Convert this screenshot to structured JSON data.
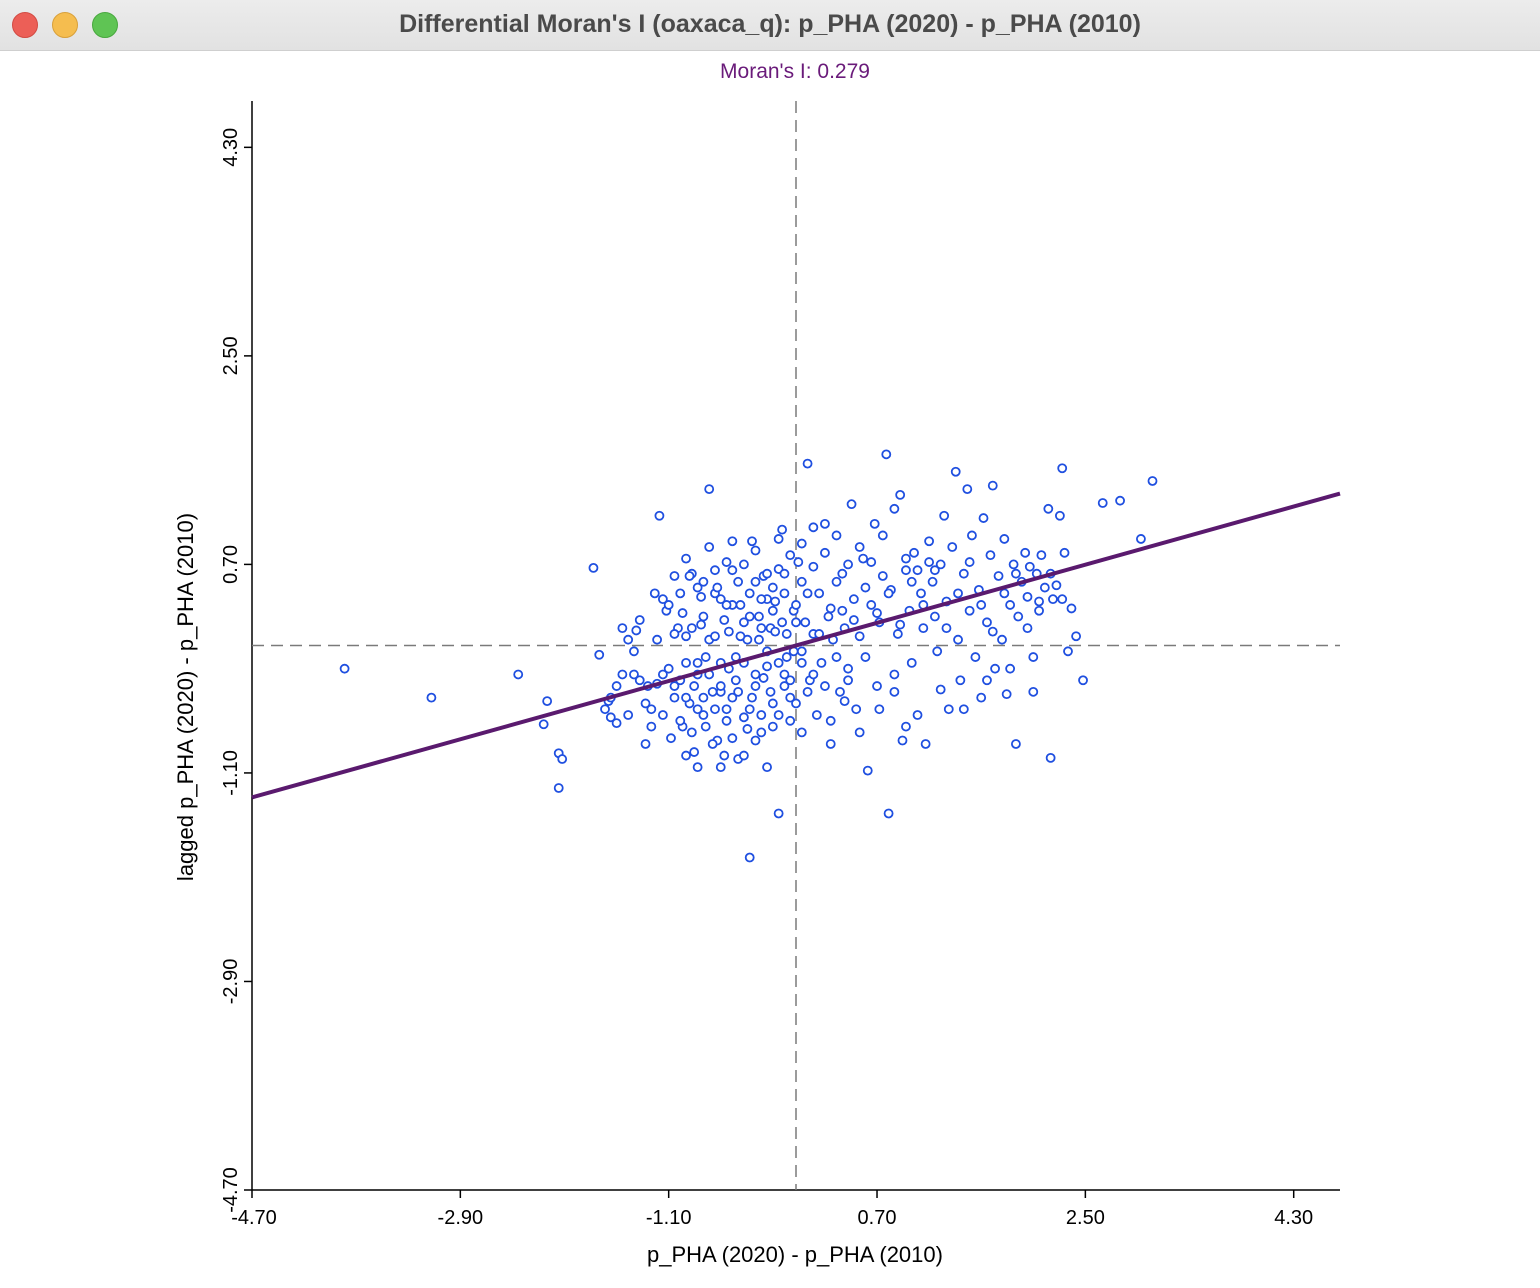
{
  "window": {
    "title": "Differential Moran's I (oaxaca_q): p_PHA (2020) - p_PHA (2010)"
  },
  "colors": {
    "points": "#1f4fe0",
    "regression_line": "#5a1a6e",
    "title": "#6a1b7a",
    "reference_lines": "#7a7a7a"
  },
  "chart_data": {
    "type": "scatter",
    "title": "Moran's I: 0.279",
    "xlabel": "p_PHA (2020) - p_PHA (2010)",
    "ylabel": "lagged p_PHA (2020) - p_PHA (2010)",
    "xlim": [
      -4.7,
      4.7
    ],
    "ylim": [
      -4.7,
      4.7
    ],
    "xticks": [
      "-4.70",
      "-2.90",
      "-1.10",
      "0.70",
      "2.50",
      "4.30"
    ],
    "yticks": [
      "-4.70",
      "-2.90",
      "-1.10",
      "0.70",
      "2.50",
      "4.30"
    ],
    "x_reference": 0.0,
    "y_reference": 0.0,
    "regression": {
      "slope": 0.279,
      "intercept": 0.0
    },
    "points": [
      [
        -3.9,
        -0.2
      ],
      [
        -3.15,
        -0.45
      ],
      [
        -2.4,
        -0.25
      ],
      [
        -2.15,
        -0.48
      ],
      [
        -2.18,
        -0.68
      ],
      [
        -2.05,
        -0.93
      ],
      [
        -2.02,
        -0.98
      ],
      [
        -2.05,
        -1.23
      ],
      [
        -1.75,
        0.67
      ],
      [
        -1.7,
        -0.08
      ],
      [
        -1.62,
        -0.48
      ],
      [
        -1.6,
        -0.62
      ],
      [
        -1.55,
        -0.67
      ],
      [
        -1.5,
        -0.25
      ],
      [
        -1.45,
        -0.6
      ],
      [
        -1.4,
        -0.25
      ],
      [
        -1.38,
        0.13
      ],
      [
        -1.35,
        0.22
      ],
      [
        -1.3,
        -0.85
      ],
      [
        -1.28,
        -0.35
      ],
      [
        -1.25,
        -0.55
      ],
      [
        -1.22,
        0.45
      ],
      [
        -1.2,
        -0.33
      ],
      [
        -1.18,
        1.12
      ],
      [
        -1.15,
        0.4
      ],
      [
        -1.12,
        0.3
      ],
      [
        -1.1,
        -0.2
      ],
      [
        -1.08,
        -0.8
      ],
      [
        -1.05,
        -0.45
      ],
      [
        -1.02,
        0.15
      ],
      [
        -1.0,
        -0.3
      ],
      [
        -0.98,
        -0.7
      ],
      [
        -0.95,
        0.08
      ],
      [
        -0.92,
        -0.5
      ],
      [
        -0.9,
        0.62
      ],
      [
        -0.88,
        -0.92
      ],
      [
        -0.85,
        -0.25
      ],
      [
        -0.82,
        0.18
      ],
      [
        -0.8,
        -0.6
      ],
      [
        -0.78,
        -0.1
      ],
      [
        -0.75,
        1.35
      ],
      [
        -0.72,
        -0.4
      ],
      [
        -0.7,
        0.45
      ],
      [
        -0.68,
        -0.82
      ],
      [
        -0.65,
        -0.15
      ],
      [
        -0.62,
        0.22
      ],
      [
        -0.6,
        -0.55
      ],
      [
        -0.58,
        0.12
      ],
      [
        -0.55,
        0.65
      ],
      [
        -0.52,
        -0.3
      ],
      [
        -0.5,
        -0.98
      ],
      [
        -0.48,
        0.35
      ],
      [
        -0.45,
        -0.62
      ],
      [
        -0.42,
        0.05
      ],
      [
        -0.4,
        -1.83
      ],
      [
        -0.38,
        0.9
      ],
      [
        -0.35,
        -0.35
      ],
      [
        -0.32,
        0.25
      ],
      [
        -0.3,
        -0.75
      ],
      [
        -0.28,
        0.6
      ],
      [
        -0.25,
        -0.18
      ],
      [
        -0.22,
        0.15
      ],
      [
        -0.2,
        -0.5
      ],
      [
        -0.18,
        0.38
      ],
      [
        -0.15,
        -1.45
      ],
      [
        -0.12,
        1.0
      ],
      [
        -0.1,
        -0.25
      ],
      [
        -0.08,
        0.1
      ],
      [
        -0.05,
        -0.65
      ],
      [
        -0.02,
        0.3
      ],
      [
        -0.15,
        0.66
      ],
      [
        -0.25,
        0.4
      ],
      [
        -0.35,
        0.55
      ],
      [
        -0.45,
        0.2
      ],
      [
        -0.55,
        0.35
      ],
      [
        -0.65,
        -0.4
      ],
      [
        -0.75,
        0.05
      ],
      [
        -0.85,
        -0.55
      ],
      [
        -0.95,
        -0.15
      ],
      [
        -1.05,
        0.1
      ],
      [
        -1.15,
        -0.6
      ],
      [
        -0.72,
        -0.85
      ],
      [
        -0.62,
        -0.95
      ],
      [
        -0.52,
        -0.1
      ],
      [
        -0.42,
        -0.72
      ],
      [
        -0.32,
        0.05
      ],
      [
        -0.22,
        -0.4
      ],
      [
        -0.12,
        0.2
      ],
      [
        -0.02,
        -0.05
      ],
      [
        -0.82,
        0.42
      ],
      [
        -0.92,
        0.6
      ],
      [
        -0.98,
        0.28
      ],
      [
        -0.88,
        -0.35
      ],
      [
        -0.78,
        -0.7
      ],
      [
        -0.68,
        0.5
      ],
      [
        -0.58,
        -0.2
      ],
      [
        -0.48,
        0.08
      ],
      [
        -0.38,
        -0.45
      ],
      [
        -0.28,
        -0.28
      ],
      [
        -0.18,
        0.12
      ],
      [
        -0.08,
        -0.1
      ],
      [
        0.0,
        0.35
      ],
      [
        0.02,
        0.72
      ],
      [
        0.05,
        -0.05
      ],
      [
        0.08,
        0.2
      ],
      [
        0.1,
        1.57
      ],
      [
        0.12,
        -0.3
      ],
      [
        0.15,
        0.1
      ],
      [
        0.18,
        -0.6
      ],
      [
        0.2,
        0.45
      ],
      [
        0.22,
        -0.15
      ],
      [
        0.25,
        1.05
      ],
      [
        0.28,
        0.25
      ],
      [
        0.3,
        -0.85
      ],
      [
        0.32,
        0.05
      ],
      [
        0.35,
        0.55
      ],
      [
        0.38,
        -0.4
      ],
      [
        0.4,
        0.3
      ],
      [
        0.42,
        0.15
      ],
      [
        0.45,
        -0.2
      ],
      [
        0.48,
        1.22
      ],
      [
        0.5,
        0.4
      ],
      [
        0.52,
        -0.55
      ],
      [
        0.55,
        0.08
      ],
      [
        0.58,
        0.75
      ],
      [
        0.6,
        -0.1
      ],
      [
        0.62,
        -1.08
      ],
      [
        0.65,
        0.35
      ],
      [
        0.68,
        1.05
      ],
      [
        0.7,
        -0.35
      ],
      [
        0.72,
        0.2
      ],
      [
        0.75,
        0.6
      ],
      [
        0.78,
        1.65
      ],
      [
        0.8,
        -1.45
      ],
      [
        0.82,
        0.48
      ],
      [
        0.85,
        -0.25
      ],
      [
        0.88,
        0.1
      ],
      [
        0.9,
        1.3
      ],
      [
        0.92,
        -0.82
      ],
      [
        0.95,
        0.65
      ],
      [
        0.98,
        0.3
      ],
      [
        1.0,
        -0.15
      ],
      [
        1.02,
        0.8
      ],
      [
        1.05,
        -0.6
      ],
      [
        1.08,
        0.45
      ],
      [
        1.1,
        0.15
      ],
      [
        1.12,
        -0.85
      ],
      [
        1.15,
        0.9
      ],
      [
        1.18,
        0.55
      ],
      [
        1.2,
        0.25
      ],
      [
        1.22,
        -0.05
      ],
      [
        1.25,
        0.7
      ],
      [
        1.28,
        1.12
      ],
      [
        1.3,
        0.38
      ],
      [
        1.32,
        -0.55
      ],
      [
        1.35,
        0.85
      ],
      [
        1.38,
        1.5
      ],
      [
        1.4,
        0.05
      ],
      [
        1.42,
        -0.3
      ],
      [
        1.45,
        0.62
      ],
      [
        1.48,
        1.35
      ],
      [
        1.5,
        0.3
      ],
      [
        1.52,
        0.95
      ],
      [
        1.55,
        -0.1
      ],
      [
        1.58,
        0.48
      ],
      [
        1.6,
        -0.45
      ],
      [
        1.62,
        1.1
      ],
      [
        1.65,
        0.2
      ],
      [
        1.68,
        0.78
      ],
      [
        1.7,
        1.38
      ],
      [
        1.72,
        -0.2
      ],
      [
        1.75,
        0.6
      ],
      [
        1.78,
        0.05
      ],
      [
        1.8,
        0.92
      ],
      [
        1.82,
        -0.42
      ],
      [
        1.85,
        0.35
      ],
      [
        1.88,
        0.7
      ],
      [
        1.9,
        -0.85
      ],
      [
        1.92,
        0.25
      ],
      [
        1.95,
        0.55
      ],
      [
        1.98,
        0.8
      ],
      [
        2.0,
        0.42
      ],
      [
        2.02,
        0.68
      ],
      [
        2.05,
        -0.1
      ],
      [
        2.08,
        0.62
      ],
      [
        2.1,
        0.38
      ],
      [
        2.12,
        0.78
      ],
      [
        2.15,
        0.5
      ],
      [
        2.18,
        1.18
      ],
      [
        2.2,
        -0.97
      ],
      [
        2.22,
        0.4
      ],
      [
        2.25,
        0.52
      ],
      [
        2.28,
        1.12
      ],
      [
        2.3,
        1.53
      ],
      [
        2.32,
        0.8
      ],
      [
        2.35,
        -0.05
      ],
      [
        2.38,
        0.32
      ],
      [
        2.42,
        0.08
      ],
      [
        2.48,
        -0.3
      ],
      [
        2.65,
        1.23
      ],
      [
        2.8,
        1.25
      ],
      [
        2.98,
        0.92
      ],
      [
        3.08,
        1.42
      ],
      [
        -0.6,
        0.72
      ],
      [
        -0.7,
        0.08
      ],
      [
        -0.8,
        0.25
      ],
      [
        -0.4,
        0.45
      ],
      [
        -0.3,
        0.4
      ],
      [
        -0.2,
        0.3
      ],
      [
        -0.1,
        0.45
      ],
      [
        0.05,
        0.55
      ],
      [
        0.15,
        0.68
      ],
      [
        0.25,
        0.8
      ],
      [
        -0.95,
        -0.95
      ],
      [
        -0.85,
        -1.05
      ],
      [
        -0.65,
        -1.05
      ],
      [
        -0.55,
        -0.8
      ],
      [
        -0.45,
        -0.95
      ],
      [
        -0.35,
        -0.82
      ],
      [
        -0.25,
        -1.05
      ],
      [
        -0.15,
        -0.6
      ],
      [
        -0.05,
        -0.45
      ],
      [
        0.05,
        -0.75
      ],
      [
        0.3,
        -0.65
      ],
      [
        0.42,
        -0.48
      ],
      [
        0.55,
        -0.75
      ],
      [
        0.72,
        -0.55
      ],
      [
        0.85,
        -0.4
      ],
      [
        0.95,
        -0.7
      ],
      [
        1.25,
        -0.38
      ],
      [
        1.45,
        -0.55
      ],
      [
        1.65,
        -0.3
      ],
      [
        1.85,
        -0.2
      ],
      [
        2.05,
        -0.4
      ],
      [
        -1.25,
        -0.7
      ],
      [
        -1.3,
        -0.5
      ],
      [
        -1.35,
        -0.3
      ],
      [
        -1.4,
        -0.05
      ],
      [
        -1.45,
        0.05
      ],
      [
        -1.5,
        0.15
      ],
      [
        -1.55,
        -0.35
      ],
      [
        -1.6,
        -0.45
      ],
      [
        -1.65,
        -0.55
      ],
      [
        -1.2,
        0.05
      ],
      [
        -1.1,
        0.35
      ],
      [
        -1.0,
        0.45
      ],
      [
        -0.9,
        0.15
      ],
      [
        -0.8,
        0.55
      ],
      [
        -0.7,
        0.65
      ],
      [
        -0.6,
        0.35
      ],
      [
        -0.5,
        0.55
      ],
      [
        -0.4,
        0.25
      ],
      [
        -0.3,
        0.15
      ],
      [
        -0.2,
        0.5
      ],
      [
        -0.1,
        0.62
      ],
      [
        0.0,
        0.2
      ],
      [
        0.1,
        0.45
      ],
      [
        0.2,
        0.1
      ],
      [
        0.3,
        0.32
      ],
      [
        0.4,
        0.62
      ],
      [
        0.5,
        0.22
      ],
      [
        0.6,
        0.5
      ],
      [
        0.7,
        0.28
      ],
      [
        0.8,
        0.45
      ],
      [
        0.9,
        0.18
      ],
      [
        1.0,
        0.55
      ],
      [
        1.1,
        0.35
      ],
      [
        1.2,
        0.65
      ],
      [
        1.3,
        0.15
      ],
      [
        1.4,
        0.45
      ],
      [
        1.5,
        0.72
      ],
      [
        1.6,
        0.35
      ],
      [
        1.7,
        0.12
      ],
      [
        1.8,
        0.45
      ],
      [
        1.9,
        0.62
      ],
      [
        2.0,
        0.15
      ],
      [
        2.1,
        0.3
      ],
      [
        2.2,
        0.62
      ],
      [
        2.3,
        0.4
      ],
      [
        -1.15,
        -0.25
      ],
      [
        -1.05,
        -0.35
      ],
      [
        -0.95,
        -0.45
      ],
      [
        -0.85,
        -0.15
      ],
      [
        -0.75,
        -0.25
      ],
      [
        -0.65,
        -0.35
      ],
      [
        -0.55,
        -0.45
      ],
      [
        -0.45,
        -0.15
      ],
      [
        -0.35,
        -0.25
      ],
      [
        -0.25,
        -0.05
      ],
      [
        -0.15,
        -0.15
      ],
      [
        -0.05,
        -0.3
      ],
      [
        0.05,
        -0.15
      ],
      [
        0.15,
        -0.25
      ],
      [
        0.25,
        -0.35
      ],
      [
        0.35,
        -0.1
      ],
      [
        0.45,
        -0.3
      ],
      [
        -1.0,
        -0.65
      ],
      [
        -0.9,
        -0.75
      ],
      [
        -0.8,
        -0.45
      ],
      [
        -0.7,
        -0.55
      ],
      [
        -0.6,
        -0.65
      ],
      [
        -0.5,
        -0.4
      ],
      [
        -0.4,
        -0.55
      ],
      [
        -0.3,
        -0.6
      ],
      [
        -0.2,
        -0.7
      ],
      [
        -0.1,
        -0.35
      ],
      [
        0.0,
        -0.5
      ],
      [
        0.1,
        -0.4
      ],
      [
        -1.05,
        0.6
      ],
      [
        -0.95,
        0.75
      ],
      [
        -0.85,
        0.5
      ],
      [
        -0.75,
        0.85
      ],
      [
        -0.65,
        0.4
      ],
      [
        -0.55,
        0.9
      ],
      [
        -0.45,
        0.7
      ],
      [
        -0.35,
        0.82
      ],
      [
        -0.25,
        0.62
      ],
      [
        -0.15,
        0.92
      ],
      [
        -0.05,
        0.78
      ],
      [
        0.05,
        0.88
      ],
      [
        0.15,
        1.02
      ],
      [
        0.35,
        0.95
      ],
      [
        0.45,
        0.7
      ],
      [
        0.55,
        0.85
      ],
      [
        0.65,
        0.72
      ],
      [
        0.75,
        0.95
      ],
      [
        0.85,
        1.18
      ],
      [
        0.95,
        0.75
      ],
      [
        1.05,
        0.65
      ],
      [
        1.15,
        0.72
      ]
    ]
  }
}
